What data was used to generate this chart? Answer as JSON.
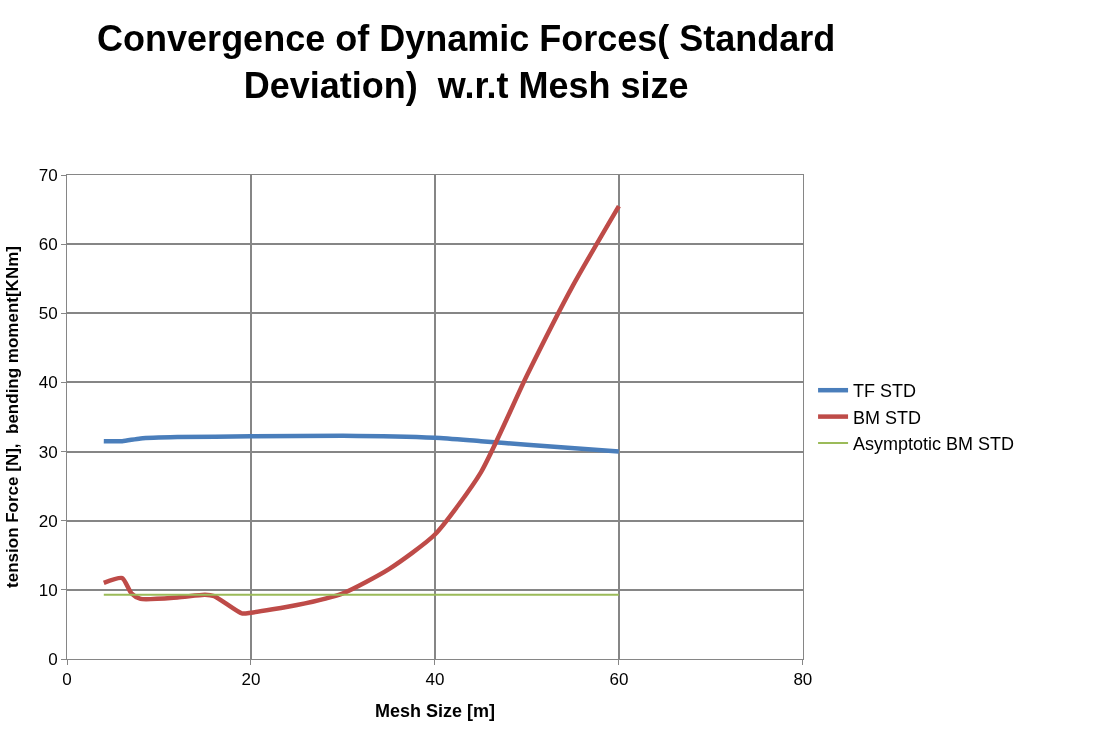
{
  "chart_data": {
    "type": "line",
    "title": "Convergence of Dynamic Forces( Standard Deviation)  w.r.t Mesh size",
    "xlabel": "Mesh Size [m]",
    "ylabel": "tension Force [N],  bending moment[KNm]",
    "xlim": [
      0,
      80
    ],
    "xticks": [
      0,
      20,
      40,
      60,
      80
    ],
    "ylim": [
      0,
      70
    ],
    "yticks": [
      0,
      10,
      20,
      30,
      40,
      50,
      60,
      70
    ],
    "grid": true,
    "legend": "right",
    "marker": "none",
    "series": [
      {
        "name": "TF STD",
        "color": "#4a7ebb",
        "x": [
          4,
          6,
          8,
          12,
          20,
          30,
          40,
          45,
          50,
          60
        ],
        "values": [
          31.5,
          31.5,
          31.9,
          32.1,
          32.2,
          32.3,
          32,
          31.5,
          31,
          30
        ]
      },
      {
        "name": "BM STD",
        "color": "#be4b48",
        "x": [
          4,
          6,
          7,
          8,
          12,
          15,
          16,
          19,
          20,
          25,
          30,
          35,
          40,
          45,
          50,
          55,
          60
        ],
        "values": [
          11,
          11.7,
          9.5,
          8.7,
          8.9,
          9.3,
          9.1,
          6.6,
          6.7,
          7.8,
          9.5,
          13,
          18,
          27,
          41,
          54,
          65.5
        ]
      },
      {
        "name": "Asymptotic BM STD",
        "color": "#9bbb59",
        "x": [
          4,
          60
        ],
        "values": [
          9.3,
          9.3
        ]
      }
    ]
  }
}
